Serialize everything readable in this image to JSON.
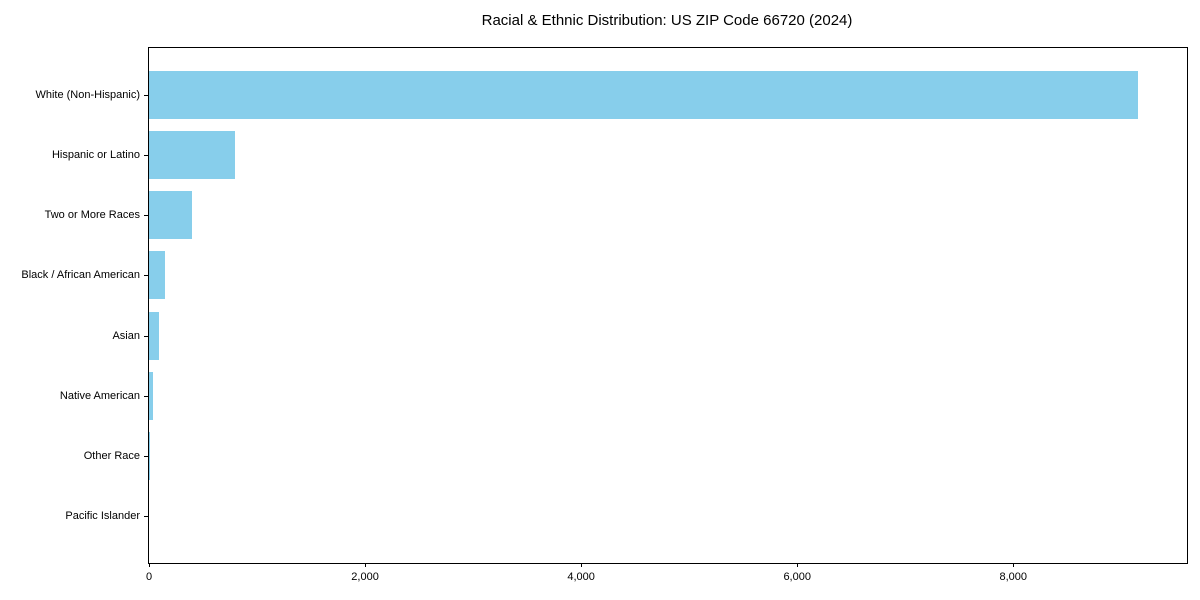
{
  "title": "Racial & Ethnic Distribution: US ZIP Code 66720 (2024)",
  "colors": {
    "bar": "#87CEEB",
    "axis": "#000000",
    "text": "#000000",
    "background": "#FFFFFF"
  },
  "chart_data": {
    "type": "bar",
    "orientation": "horizontal",
    "title": "Racial & Ethnic Distribution: US ZIP Code 66720 (2024)",
    "xlabel": "",
    "ylabel": "",
    "categories": [
      "White (Non-Hispanic)",
      "Hispanic or Latino",
      "Two or More Races",
      "Black / African American",
      "Asian",
      "Native American",
      "Other Race",
      "Pacific Islander"
    ],
    "values": [
      9150,
      795,
      395,
      145,
      90,
      35,
      8,
      0
    ],
    "xlim": [
      0,
      9608
    ],
    "x_ticks": [
      0,
      2000,
      4000,
      6000,
      8000
    ],
    "x_tick_labels": [
      "0",
      "2,000",
      "4,000",
      "6,000",
      "8,000"
    ],
    "bar_color": "#87CEEB",
    "grid": false,
    "legend": false
  }
}
